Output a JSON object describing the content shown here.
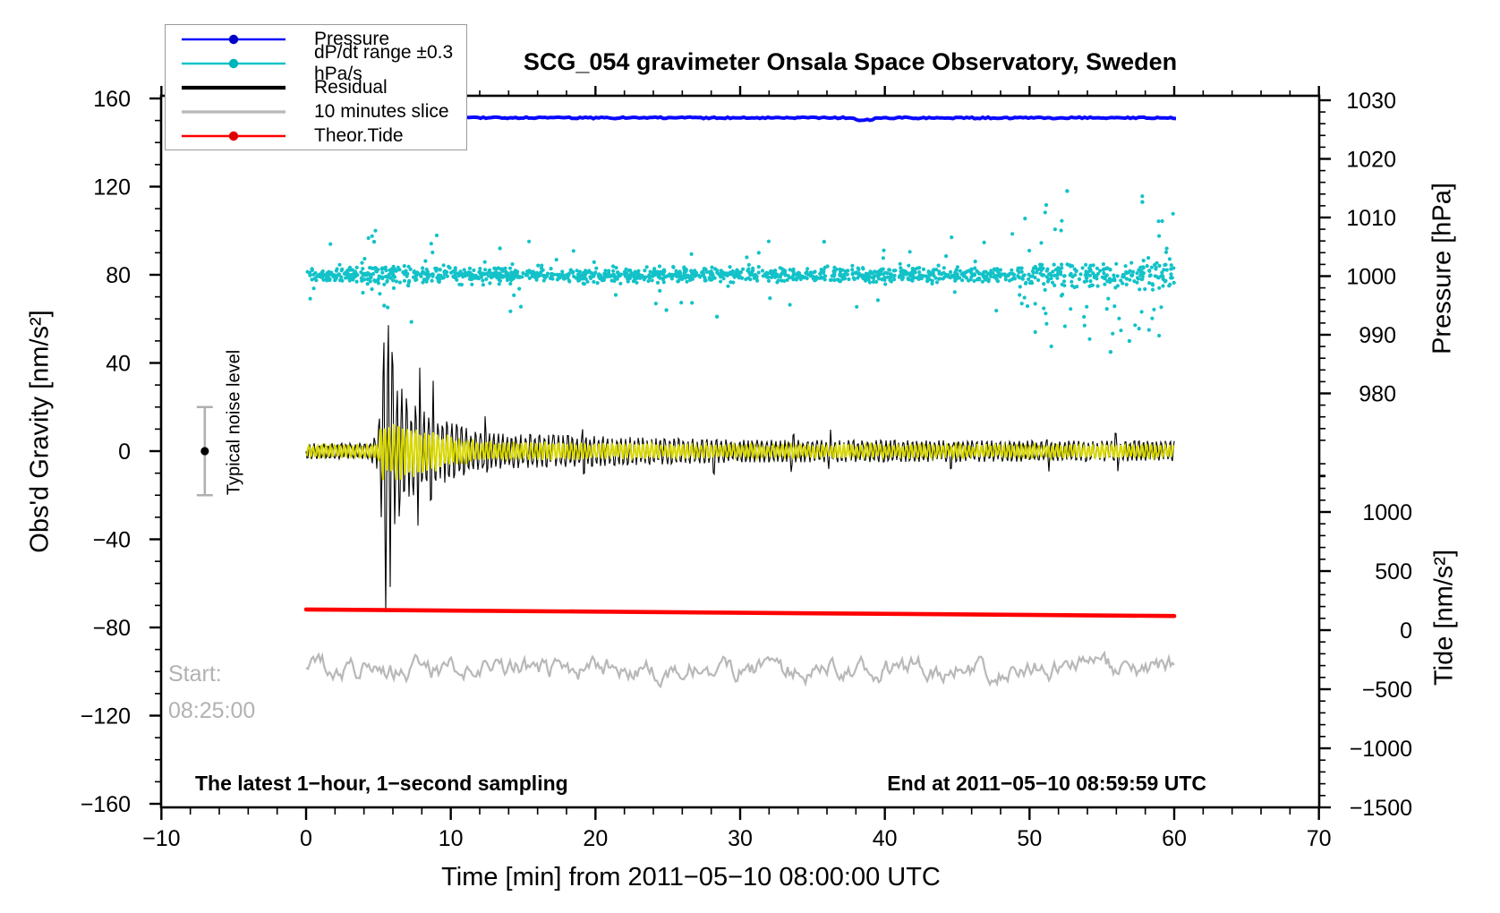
{
  "title": "SCG_054 gravimeter Onsala Space Observatory, Sweden",
  "legend": {
    "items": [
      {
        "label": "Pressure",
        "color": "#0a0aff",
        "dot_color": "#0000c8",
        "dot": true,
        "lw": 2.6
      },
      {
        "label": "dP/dt range ±0.3 hPa/s",
        "color": "#12c2c8",
        "dot_color": "#00b4bc",
        "dot": true,
        "lw": 2.6
      },
      {
        "label": "Residual",
        "color": "#000000",
        "dot_color": "#000000",
        "dot": false,
        "lw": 4.2
      },
      {
        "label": "10 minutes slice",
        "color": "#b8b8b8",
        "dot_color": "#b8b8b8",
        "dot": false,
        "lw": 3.2
      },
      {
        "label": "Theor.Tide",
        "color": "#ff0000",
        "dot_color": "#e00000",
        "dot": true,
        "lw": 2.6
      }
    ]
  },
  "axes": {
    "left": {
      "title": "Obs'd Gravity [nm/s²]",
      "tick_values": [
        160,
        120,
        80,
        40,
        0,
        -40,
        -80,
        -120,
        -160
      ],
      "tick_labels": [
        "160",
        "120",
        "80",
        "40",
        "0",
        "−40",
        "−80",
        "−120",
        "−160"
      ],
      "minor_step": 10,
      "range": [
        -160,
        160
      ]
    },
    "bottom": {
      "title": "Time [min] from 2011−05−10 08:00:00 UTC",
      "tick_values": [
        -10,
        0,
        10,
        20,
        30,
        40,
        50,
        60,
        70
      ],
      "tick_labels": [
        "−10",
        "0",
        "10",
        "20",
        "30",
        "40",
        "50",
        "60",
        "70"
      ],
      "minor_step": 2,
      "range": [
        -10,
        70
      ]
    },
    "right_pressure": {
      "title": "Pressure [hPa]",
      "tick_values": [
        1030,
        1020,
        1010,
        1000,
        990,
        980
      ],
      "tick_labels": [
        "1030",
        "1020",
        "1010",
        "1000",
        "990",
        "980"
      ],
      "minor_step": 2
    },
    "right_tide": {
      "title": "Tide [nm/s²]",
      "tick_values": [
        1000,
        500,
        0,
        -500,
        -1000,
        -1500
      ],
      "tick_labels": [
        "1000",
        "500",
        "0",
        "−500",
        "−1000",
        "−1500"
      ],
      "minor_step": 100
    }
  },
  "annotations": {
    "noise_label": "Typical noise level",
    "start_line1": "Start:",
    "start_line2": "08:25:00",
    "footer_left": "The latest 1−hour, 1−second sampling",
    "footer_right": "End at 2011−05−10 08:59:59 UTC"
  },
  "chart_data": {
    "type": "line",
    "x_range_min": [
      0,
      60
    ],
    "series": [
      {
        "name": "Pressure",
        "type": "line",
        "axis": "pressure_hPa",
        "value_hPa": 1027,
        "note": "nearly constant barometric pressure trace"
      },
      {
        "name": "dP/dt range ±0.3 hPa/s",
        "type": "scatter",
        "axis": "gravity_nm_s2",
        "center_gravity": 80,
        "typical_spread": 3,
        "notable_outliers_t_g": [
          [
            24.9,
            64
          ],
          [
            52.6,
            118
          ],
          [
            57.8,
            113
          ],
          [
            5.4,
            66
          ],
          [
            28.4,
            61
          ],
          [
            56.9,
            50
          ],
          [
            4.7,
            95
          ],
          [
            55.6,
            45
          ],
          [
            13.4,
            92
          ],
          [
            35.8,
            95
          ]
        ]
      },
      {
        "name": "Residual",
        "type": "line",
        "axis": "gravity_nm_s2",
        "earthquake_onset_min": 5.1,
        "peak_amplitude": 77,
        "envelope_t_amp": [
          [
            0,
            3.5
          ],
          [
            4.4,
            3.5
          ],
          [
            5.0,
            10
          ],
          [
            5.55,
            77
          ],
          [
            6.3,
            30
          ],
          [
            8,
            18
          ],
          [
            12,
            8
          ],
          [
            30,
            5
          ],
          [
            60,
            4.5
          ]
        ],
        "aftershock_spikes_min": [
          7.8,
          8.7,
          12.4,
          19.2,
          28.2,
          33.6,
          36.2,
          44.6,
          51.3,
          56.0
        ]
      },
      {
        "name": "Yellow filtered residual",
        "type": "line",
        "axis": "gravity_nm_s2",
        "amplitude_ratio_of_residual": 0.5,
        "max_amplitude": 12
      },
      {
        "name": "10 minutes slice",
        "type": "line",
        "axis": "gravity_nm_s2",
        "center": -99,
        "max_amplitude": 11
      },
      {
        "name": "Theor.Tide",
        "type": "line",
        "axis": "tide_nm_s2",
        "start_value": 175,
        "end_value": 120
      }
    ],
    "noise_marker": {
      "center_gravity": 0,
      "error": 20,
      "x_min": -7
    },
    "ylim_gravity": [
      -160,
      160
    ],
    "pressure_axis_span": [
      980,
      1030
    ],
    "tide_axis_span": [
      -1500,
      1000
    ],
    "grid": false,
    "legend_position": "top-left"
  }
}
